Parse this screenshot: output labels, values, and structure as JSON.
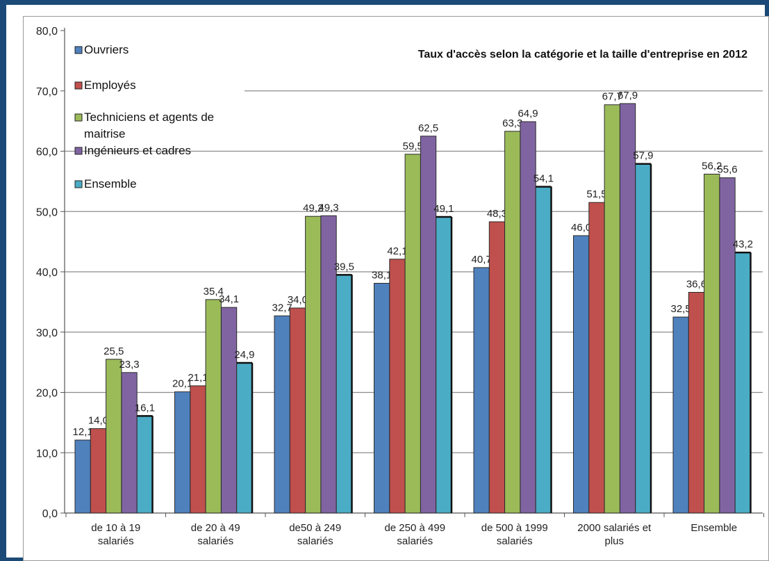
{
  "chart_data": {
    "type": "bar",
    "title": "Taux d'accès selon la catégorie et la taille d'entreprise en 2012",
    "xlabel": "",
    "ylabel": "",
    "ylim": [
      0,
      80
    ],
    "yticks": [
      "0,0",
      "10,0",
      "20,0",
      "30,0",
      "40,0",
      "50,0",
      "60,0",
      "70,0",
      "80,0"
    ],
    "grid": true,
    "legend_position": "top-left",
    "categories": [
      [
        "de 10 à 19",
        "salariés"
      ],
      [
        "de 20 à 49",
        "salariés"
      ],
      [
        "de50 à 249",
        "salariés"
      ],
      [
        "de 250 à 499",
        "salariés"
      ],
      [
        "de 500 à 1999",
        "salariés"
      ],
      [
        "2000 salariés et",
        "plus"
      ],
      [
        "Ensemble"
      ]
    ],
    "series": [
      {
        "name": "Ouvriers",
        "color": "#4f81bd",
        "values": [
          12.1,
          20.1,
          32.7,
          38.1,
          40.7,
          46.0,
          32.5
        ],
        "labels": [
          "12,1",
          "20,1",
          "32,7",
          "38,1",
          "40,7",
          "46,0",
          "32,5"
        ]
      },
      {
        "name": "Employés",
        "color": "#c0504d",
        "values": [
          14.0,
          21.1,
          34.0,
          42.1,
          48.3,
          51.5,
          36.6
        ],
        "labels": [
          "14,0",
          "21,1",
          "34,0",
          "42,1",
          "48,3",
          "51,5",
          "36,6"
        ]
      },
      {
        "name": [
          "Techniciens et agents de",
          "maitrise"
        ],
        "color": "#9bbb59",
        "values": [
          25.5,
          35.4,
          49.2,
          59.5,
          63.3,
          67.7,
          56.2
        ],
        "labels": [
          "25,5",
          "35,4",
          "49,2",
          "59,5",
          "63,3",
          "67,7",
          "56,2"
        ]
      },
      {
        "name": "Ingénieurs et cadres",
        "color": "#8064a2",
        "values": [
          23.3,
          34.1,
          49.3,
          62.5,
          64.9,
          67.9,
          55.6
        ],
        "labels": [
          "23,3",
          "34,1",
          "49,3",
          "62,5",
          "64,9",
          "67,9",
          "55,6"
        ]
      },
      {
        "name": "Ensemble",
        "color": "#4bacc6",
        "values": [
          16.1,
          24.9,
          39.5,
          49.1,
          54.1,
          57.9,
          43.2
        ],
        "labels": [
          "16,1",
          "24,9",
          "39,5",
          "49,1",
          "54,1",
          "57,9",
          "43,2"
        ]
      }
    ]
  }
}
